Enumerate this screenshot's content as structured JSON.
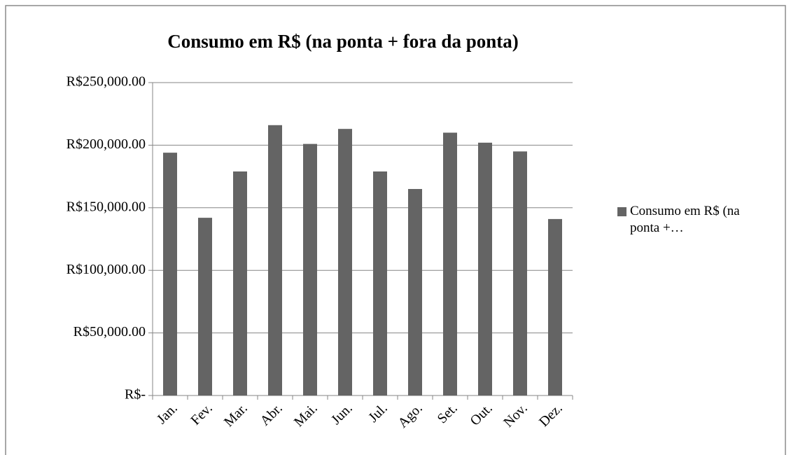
{
  "chart_data": {
    "type": "bar",
    "title": "Consumo em R$ (na ponta + fora da ponta)",
    "categories": [
      "Jan.",
      "Fev.",
      "Mar.",
      "Abr.",
      "Mai.",
      "Jun.",
      "Jul.",
      "Ago.",
      "Set.",
      "Out.",
      "Nov.",
      "Dez."
    ],
    "series": [
      {
        "name": "Consumo em R$ (na ponta +…",
        "color": "#646464",
        "values": [
          194000,
          142000,
          179000,
          216000,
          201000,
          213000,
          179000,
          165000,
          210000,
          202000,
          195000,
          141000
        ]
      }
    ],
    "ylim": [
      0,
      250000
    ],
    "yticks": [
      {
        "value": 0,
        "label": "R$-"
      },
      {
        "value": 50000,
        "label": "R$50,000.00"
      },
      {
        "value": 100000,
        "label": "R$100,000.00"
      },
      {
        "value": 150000,
        "label": "R$150,000.00"
      },
      {
        "value": 200000,
        "label": "R$200,000.00"
      },
      {
        "value": 250000,
        "label": "R$250,000.00"
      }
    ],
    "grid": true,
    "legend": "right"
  }
}
